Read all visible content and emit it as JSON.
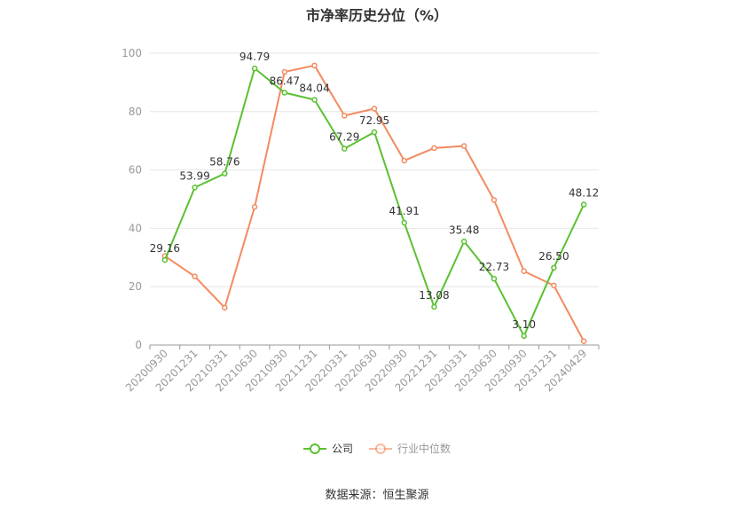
{
  "chart_data": {
    "type": "line",
    "title": "市净率历史分位（%）",
    "categories": [
      "20200930",
      "20201231",
      "20210331",
      "20210630",
      "20210930",
      "20211231",
      "20220331",
      "20220630",
      "20220930",
      "20221231",
      "20230331",
      "20230630",
      "20230930",
      "20231231",
      "20240429"
    ],
    "ylim": [
      0,
      100
    ],
    "yticks": [
      0,
      20,
      40,
      60,
      80,
      100
    ],
    "grid": true,
    "legend_position": "bottom",
    "series": [
      {
        "name": "公司",
        "color": "#5ac131",
        "values": [
          29.16,
          53.99,
          58.76,
          94.79,
          86.47,
          84.04,
          67.29,
          72.95,
          41.91,
          13.08,
          35.48,
          22.73,
          3.1,
          26.5,
          48.12
        ],
        "labels": [
          "29.16",
          "53.99",
          "58.76",
          "94.79",
          "86.47",
          "84.04",
          "67.29",
          "72.95",
          "41.91",
          "13.08",
          "35.48",
          "22.73",
          "3.10",
          "26.50",
          "48.12"
        ]
      },
      {
        "name": "行业中位数",
        "color": "#f38b5f",
        "values": [
          30.5,
          23.5,
          12.8,
          47.3,
          93.6,
          95.8,
          78.6,
          81.0,
          63.2,
          67.5,
          68.2,
          49.7,
          25.3,
          20.4,
          1.3
        ]
      }
    ]
  },
  "source_note": "数据来源：恒生聚源"
}
